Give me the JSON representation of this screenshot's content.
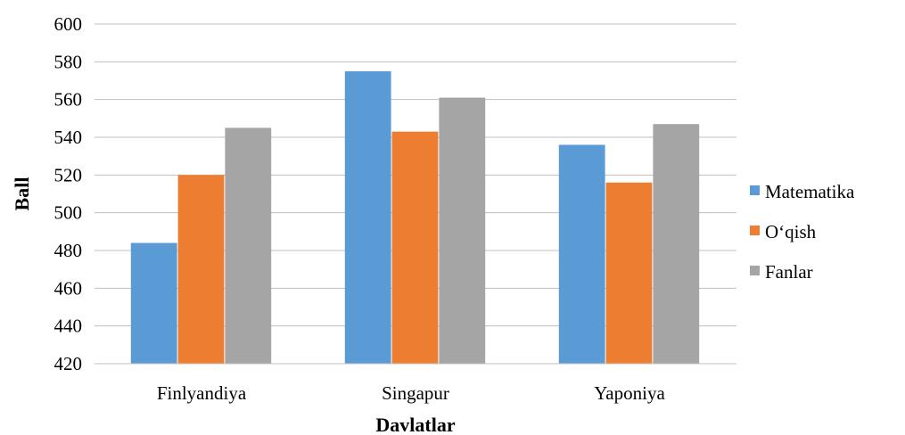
{
  "chart_data": {
    "type": "bar",
    "title": "",
    "xlabel": "Davlatlar",
    "ylabel": "Ball",
    "categories": [
      "Finlyandiya",
      "Singapur",
      "Yaponiya"
    ],
    "series": [
      {
        "name": "Matematika",
        "values": [
          484,
          575,
          536
        ],
        "color": "#5B9BD5"
      },
      {
        "name": "O‘qish",
        "values": [
          520,
          543,
          516
        ],
        "color": "#ED7D31"
      },
      {
        "name": "Fanlar",
        "values": [
          545,
          561,
          547
        ],
        "color": "#A5A5A5"
      }
    ],
    "ylim": [
      420,
      600
    ],
    "yticks": [
      420,
      440,
      460,
      480,
      500,
      520,
      540,
      560,
      580,
      600
    ],
    "grid": true,
    "legend_position": "right"
  }
}
